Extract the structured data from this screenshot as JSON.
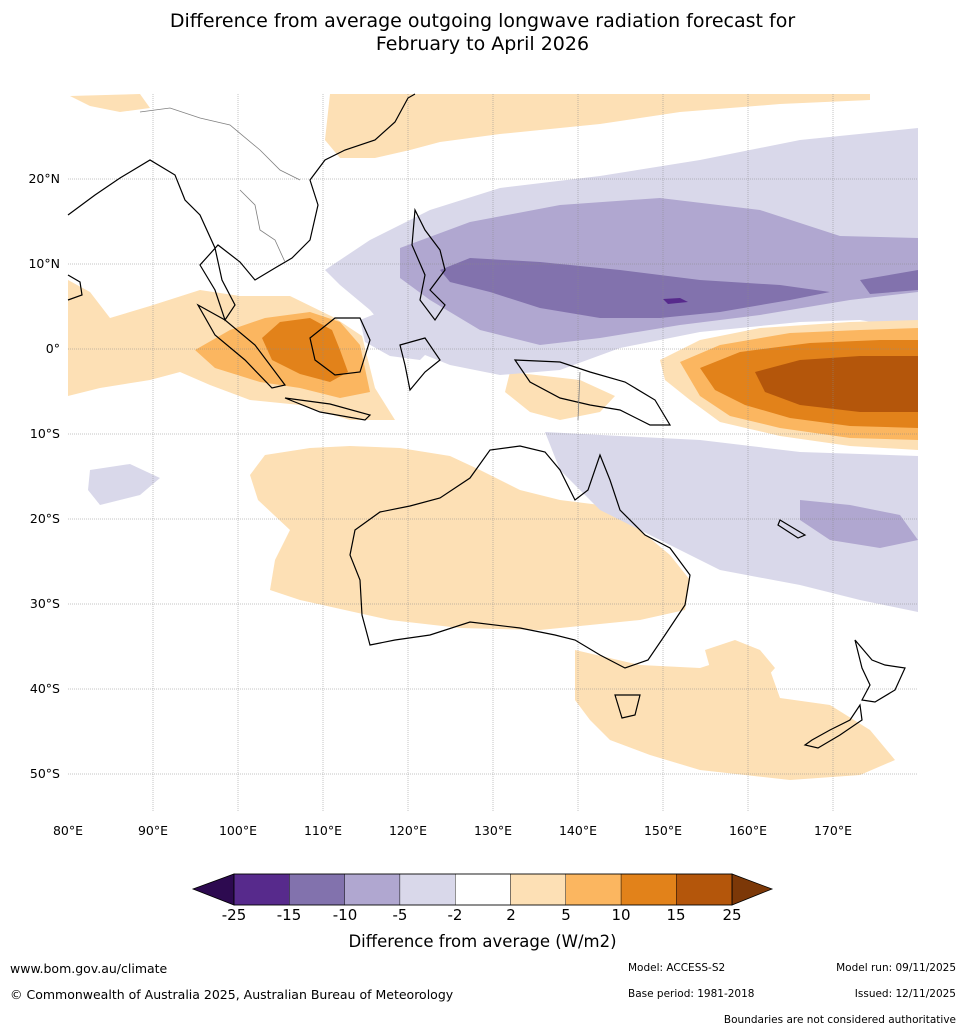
{
  "title_line1": "Difference from average outgoing longwave radiation forecast for",
  "title_line2": "February to April 2026",
  "lat_labels": [
    "20°N",
    "10°N",
    "0°",
    "10°S",
    "20°S",
    "30°S",
    "40°S",
    "50°S"
  ],
  "lon_labels": [
    "80°E",
    "90°E",
    "100°E",
    "110°E",
    "120°E",
    "130°E",
    "140°E",
    "150°E",
    "160°E",
    "170°E"
  ],
  "colorbar": {
    "label": "Difference from average (W/m2)",
    "ticks": [
      "-25",
      "-15",
      "-10",
      "-5",
      "-2",
      "2",
      "5",
      "10",
      "15",
      "25"
    ],
    "colors": [
      "#572a8c",
      "#8272ad",
      "#b0a7d0",
      "#d9d8ea",
      "#ffffff",
      "#fde0b5",
      "#fbb660",
      "#e2821a",
      "#b4560b"
    ],
    "under_color": "#2d0a50",
    "over_color": "#7c3808"
  },
  "colors": {
    "land_line": "#000000",
    "border_line": "#808080",
    "grid_line": "#888888"
  },
  "footer": {
    "website": "www.bom.gov.au/climate",
    "copyright": "© Commonwealth of Australia 2025, Australian Bureau of Meteorology",
    "model": "Model: ACCESS-S2",
    "base_period": "Base period: 1981-2018",
    "model_run": "Model run: 09/11/2025",
    "issued": "Issued: 12/11/2025",
    "disclaimer": "Boundaries are not considered authoritative"
  }
}
